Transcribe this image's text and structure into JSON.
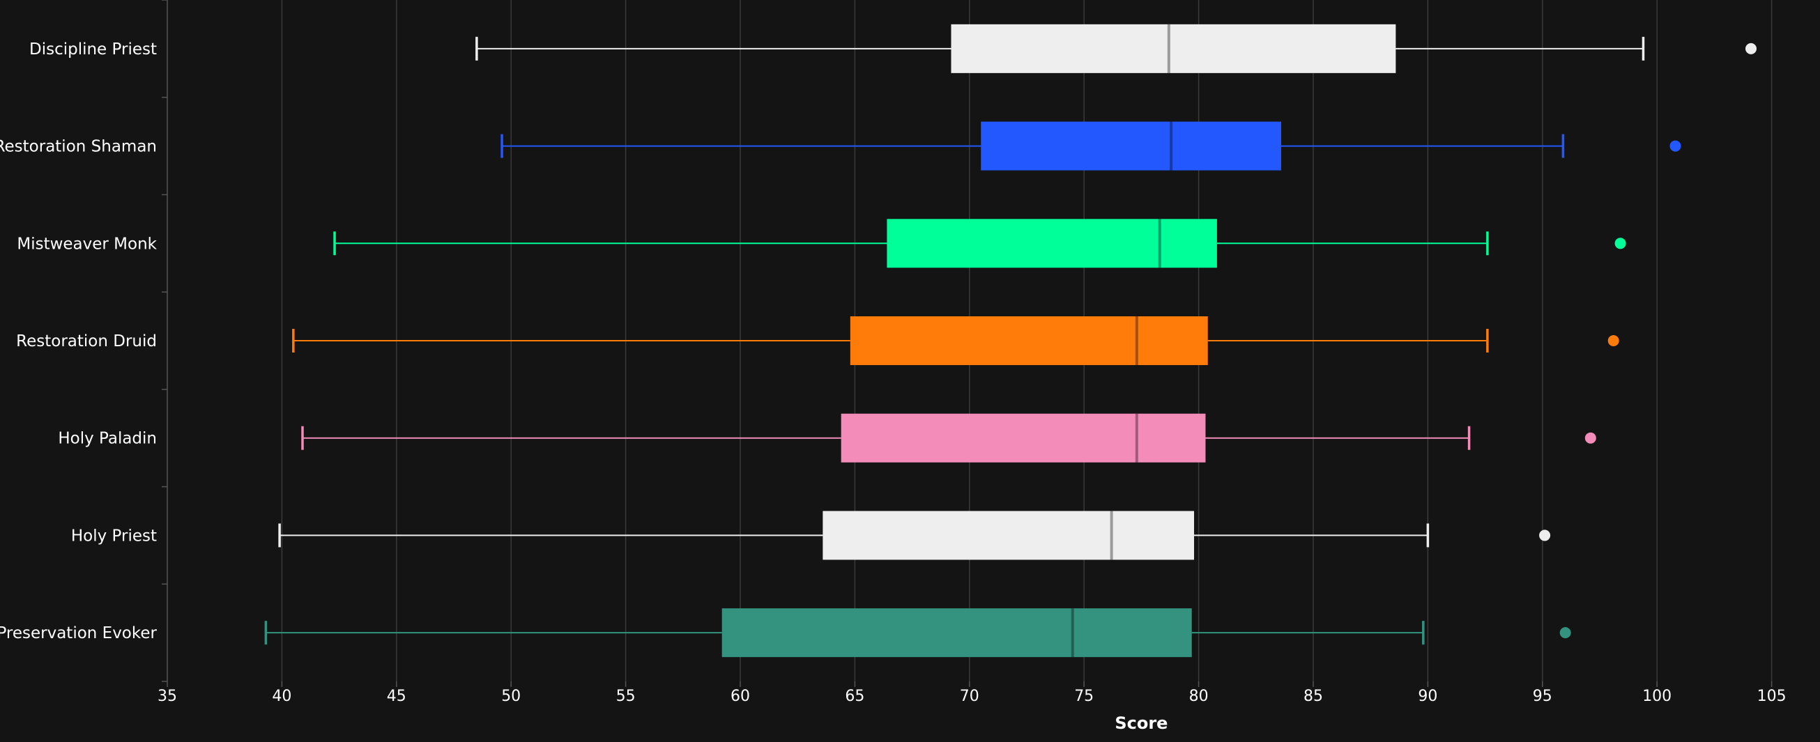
{
  "chart_data": {
    "type": "boxplot",
    "orientation": "horizontal",
    "title": "",
    "xlabel": "Score",
    "ylabel": "",
    "xlim": [
      35,
      106.5
    ],
    "xticks": [
      35,
      40,
      45,
      50,
      55,
      60,
      65,
      70,
      75,
      80,
      85,
      90,
      95,
      100,
      105
    ],
    "grid": true,
    "legend": "none",
    "background": "#141414",
    "series": [
      {
        "name": "Discipline Priest",
        "color": "#eeeeee",
        "whisker_low": 48.5,
        "q1": 69.2,
        "median": 78.7,
        "q3": 88.6,
        "whisker_high": 99.4,
        "outliers": [
          104.1
        ]
      },
      {
        "name": "Restoration Shaman",
        "color": "#2458ff",
        "whisker_low": 49.6,
        "q1": 70.5,
        "median": 78.8,
        "q3": 83.6,
        "whisker_high": 95.9,
        "outliers": [
          100.8
        ]
      },
      {
        "name": "Mistweaver Monk",
        "color": "#00ff99",
        "whisker_low": 42.3,
        "q1": 66.4,
        "median": 78.3,
        "q3": 80.8,
        "whisker_high": 92.6,
        "outliers": [
          98.4
        ]
      },
      {
        "name": "Restoration Druid",
        "color": "#ff7c0a",
        "whisker_low": 40.5,
        "q1": 64.8,
        "median": 77.3,
        "q3": 80.4,
        "whisker_high": 92.6,
        "outliers": [
          98.1
        ]
      },
      {
        "name": "Holy Paladin",
        "color": "#f48cba",
        "whisker_low": 40.9,
        "q1": 64.4,
        "median": 77.3,
        "q3": 80.3,
        "whisker_high": 91.8,
        "outliers": [
          97.1
        ]
      },
      {
        "name": "Holy Priest",
        "color": "#eeeeee",
        "whisker_low": 39.9,
        "q1": 63.6,
        "median": 76.2,
        "q3": 79.8,
        "whisker_high": 90.0,
        "outliers": [
          95.1
        ]
      },
      {
        "name": "Preservation Evoker",
        "color": "#33937f",
        "whisker_low": 39.3,
        "q1": 59.2,
        "median": 74.5,
        "q3": 79.7,
        "whisker_high": 89.8,
        "outliers": [
          96.0
        ]
      }
    ]
  }
}
